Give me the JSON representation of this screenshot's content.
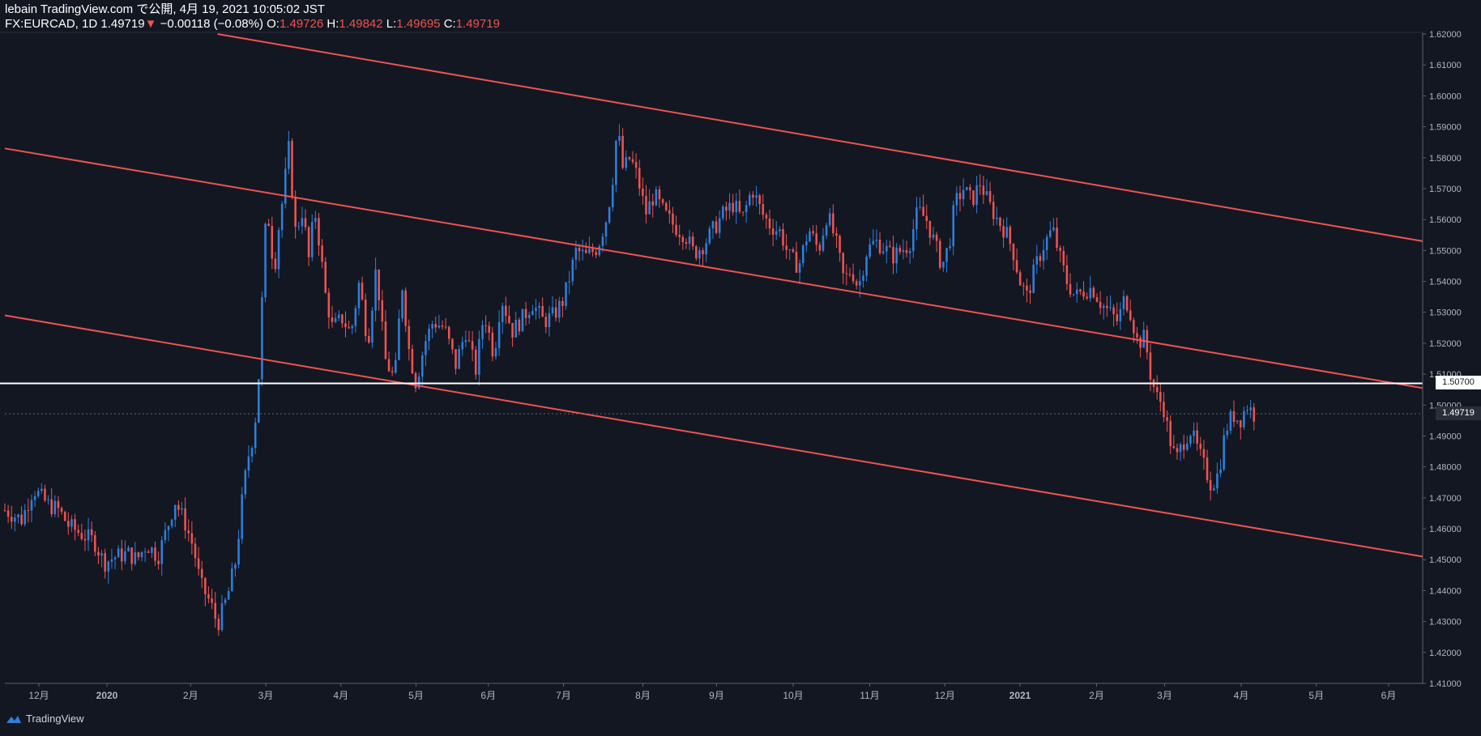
{
  "header": {
    "title": "lebain TradingView.com で公開, 4月 19, 2021 10:05:02 JST",
    "symbol": "FX:EURCAD, 1D",
    "last": "1.49719",
    "down_arrow": "▼",
    "change": "−0.00118 (−0.08%)",
    "o_label": "O:",
    "o": "1.49726",
    "h_label": "H:",
    "h": "1.49842",
    "l_label": "L:",
    "l": "1.49695",
    "c_label": "C:",
    "c": "1.49719"
  },
  "footer": {
    "brand": "TradingView"
  },
  "colors": {
    "background": "#131722",
    "up": "#2f7fdb",
    "down": "#ef5350",
    "channel": "#ef5350",
    "level": "#ffffff"
  },
  "chart_data": {
    "type": "candlestick",
    "title": "FX:EURCAD, 1D",
    "x_tick_labels": [
      "12月",
      "2020",
      "2月",
      "3月",
      "4月",
      "5月",
      "6月",
      "7月",
      "8月",
      "9月",
      "10月",
      "11月",
      "12月",
      "2021",
      "2月",
      "3月",
      "4月",
      "5月",
      "6月"
    ],
    "y_tick_labels": [
      "1.62000",
      "1.61000",
      "1.60000",
      "1.59000",
      "1.58000",
      "1.57000",
      "1.56000",
      "1.55000",
      "1.54000",
      "1.53000",
      "1.52000",
      "1.51000",
      "1.50000",
      "1.49000",
      "1.48000",
      "1.47000",
      "1.46000",
      "1.45000",
      "1.44000",
      "1.43000",
      "1.42000",
      "1.41000"
    ],
    "ylim": [
      1.41,
      1.62
    ],
    "horizontal_level": {
      "value": 1.507,
      "label": "1.50700"
    },
    "current_price": {
      "value": 1.49719,
      "label": "1.49719"
    },
    "channel_lines": [
      {
        "name": "upper",
        "start": [
          0.15,
          1.62
        ],
        "end": [
          1.0,
          1.553
        ]
      },
      {
        "name": "middle",
        "start": [
          0.0,
          1.583
        ],
        "end": [
          1.0,
          1.5055
        ]
      },
      {
        "name": "lower",
        "start": [
          0.0,
          1.529
        ],
        "end": [
          1.0,
          1.451
        ]
      }
    ],
    "path": [
      [
        0.0,
        1.466
      ],
      [
        0.012,
        1.463
      ],
      [
        0.02,
        1.473
      ],
      [
        0.03,
        1.468
      ],
      [
        0.038,
        1.466
      ],
      [
        0.045,
        1.461
      ],
      [
        0.055,
        1.458
      ],
      [
        0.063,
        1.456
      ],
      [
        0.07,
        1.449
      ],
      [
        0.078,
        1.451
      ],
      [
        0.087,
        1.452
      ],
      [
        0.093,
        1.45
      ],
      [
        0.1,
        1.455
      ],
      [
        0.108,
        1.451
      ],
      [
        0.115,
        1.461
      ],
      [
        0.12,
        1.469
      ],
      [
        0.127,
        1.462
      ],
      [
        0.133,
        1.454
      ],
      [
        0.138,
        1.442
      ],
      [
        0.145,
        1.436
      ],
      [
        0.15,
        1.429
      ],
      [
        0.157,
        1.438
      ],
      [
        0.163,
        1.45
      ],
      [
        0.168,
        1.472
      ],
      [
        0.172,
        1.484
      ],
      [
        0.176,
        1.492
      ],
      [
        0.18,
        1.515
      ],
      [
        0.183,
        1.555
      ],
      [
        0.186,
        1.56
      ],
      [
        0.19,
        1.543
      ],
      [
        0.193,
        1.557
      ],
      [
        0.197,
        1.57
      ],
      [
        0.2,
        1.584
      ],
      [
        0.205,
        1.556
      ],
      [
        0.21,
        1.563
      ],
      [
        0.215,
        1.545
      ],
      [
        0.218,
        1.565
      ],
      [
        0.222,
        1.552
      ],
      [
        0.226,
        1.536
      ],
      [
        0.231,
        1.525
      ],
      [
        0.238,
        1.528
      ],
      [
        0.244,
        1.523
      ],
      [
        0.25,
        1.54
      ],
      [
        0.256,
        1.52
      ],
      [
        0.262,
        1.545
      ],
      [
        0.268,
        1.515
      ],
      [
        0.275,
        1.508
      ],
      [
        0.28,
        1.54
      ],
      [
        0.285,
        1.518
      ],
      [
        0.29,
        1.507
      ],
      [
        0.296,
        1.52
      ],
      [
        0.302,
        1.527
      ],
      [
        0.31,
        1.525
      ],
      [
        0.318,
        1.513
      ],
      [
        0.325,
        1.524
      ],
      [
        0.332,
        1.511
      ],
      [
        0.338,
        1.53
      ],
      [
        0.345,
        1.516
      ],
      [
        0.35,
        1.535
      ],
      [
        0.358,
        1.524
      ],
      [
        0.365,
        1.528
      ],
      [
        0.372,
        1.533
      ],
      [
        0.38,
        1.527
      ],
      [
        0.387,
        1.529
      ],
      [
        0.394,
        1.534
      ],
      [
        0.398,
        1.541
      ],
      [
        0.403,
        1.55
      ],
      [
        0.41,
        1.548
      ],
      [
        0.418,
        1.551
      ],
      [
        0.424,
        1.56
      ],
      [
        0.428,
        1.57
      ],
      [
        0.432,
        1.59
      ],
      [
        0.436,
        1.576
      ],
      [
        0.441,
        1.58
      ],
      [
        0.446,
        1.574
      ],
      [
        0.452,
        1.562
      ],
      [
        0.458,
        1.568
      ],
      [
        0.465,
        1.562
      ],
      [
        0.472,
        1.558
      ],
      [
        0.48,
        1.555
      ],
      [
        0.486,
        1.549
      ],
      [
        0.493,
        1.552
      ],
      [
        0.5,
        1.557
      ],
      [
        0.507,
        1.562
      ],
      [
        0.514,
        1.565
      ],
      [
        0.52,
        1.56
      ],
      [
        0.527,
        1.57
      ],
      [
        0.534,
        1.562
      ],
      [
        0.54,
        1.558
      ],
      [
        0.547,
        1.556
      ],
      [
        0.553,
        1.548
      ],
      [
        0.56,
        1.545
      ],
      [
        0.567,
        1.557
      ],
      [
        0.574,
        1.55
      ],
      [
        0.58,
        1.562
      ],
      [
        0.586,
        1.553
      ],
      [
        0.592,
        1.54
      ],
      [
        0.597,
        1.544
      ],
      [
        0.602,
        1.538
      ],
      [
        0.608,
        1.55
      ],
      [
        0.614,
        1.553
      ],
      [
        0.62,
        1.551
      ],
      [
        0.626,
        1.548
      ],
      [
        0.632,
        1.55
      ],
      [
        0.638,
        1.552
      ],
      [
        0.644,
        1.563
      ],
      [
        0.65,
        1.56
      ],
      [
        0.656,
        1.552
      ],
      [
        0.661,
        1.545
      ],
      [
        0.666,
        1.552
      ],
      [
        0.67,
        1.565
      ],
      [
        0.676,
        1.57
      ],
      [
        0.682,
        1.566
      ],
      [
        0.688,
        1.572
      ],
      [
        0.694,
        1.565
      ],
      [
        0.7,
        1.56
      ],
      [
        0.706,
        1.556
      ],
      [
        0.711,
        1.55
      ],
      [
        0.716,
        1.54
      ],
      [
        0.721,
        1.535
      ],
      [
        0.727,
        1.545
      ],
      [
        0.733,
        1.552
      ],
      [
        0.739,
        1.557
      ],
      [
        0.744,
        1.548
      ],
      [
        0.749,
        1.54
      ],
      [
        0.755,
        1.535
      ],
      [
        0.761,
        1.537
      ],
      [
        0.767,
        1.538
      ],
      [
        0.773,
        1.533
      ],
      [
        0.779,
        1.53
      ],
      [
        0.785,
        1.527
      ],
      [
        0.79,
        1.535
      ],
      [
        0.794,
        1.53
      ],
      [
        0.799,
        1.52
      ],
      [
        0.804,
        1.522
      ],
      [
        0.808,
        1.51
      ],
      [
        0.812,
        1.503
      ],
      [
        0.817,
        1.5
      ],
      [
        0.821,
        1.49
      ],
      [
        0.826,
        1.482
      ],
      [
        0.831,
        1.488
      ],
      [
        0.836,
        1.492
      ],
      [
        0.841,
        1.486
      ],
      [
        0.846,
        1.48
      ],
      [
        0.851,
        1.474
      ],
      [
        0.856,
        1.478
      ],
      [
        0.861,
        1.492
      ],
      [
        0.866,
        1.497
      ],
      [
        0.871,
        1.495
      ],
      [
        0.876,
        1.5
      ],
      [
        0.881,
        1.497
      ]
    ]
  }
}
